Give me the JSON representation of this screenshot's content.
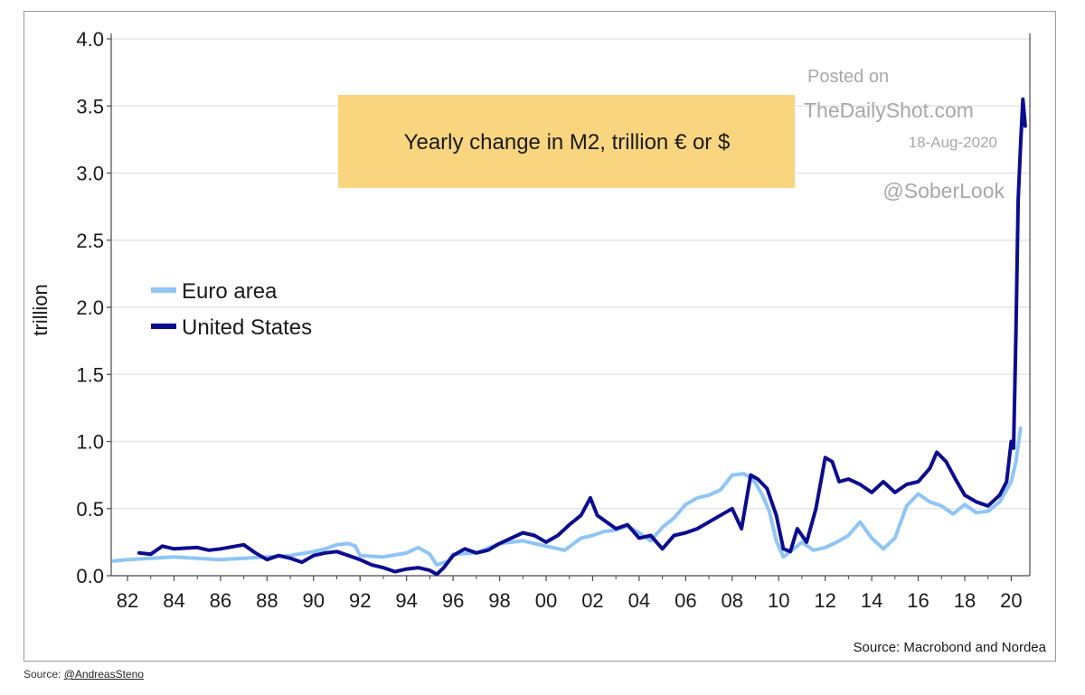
{
  "chart_data": {
    "type": "line",
    "title": "Yearly change in M2, trillion € or $",
    "ylabel": "trillion",
    "xlabel": "",
    "ylim": [
      0.0,
      4.0
    ],
    "xlim": [
      1981.3,
      2020.8
    ],
    "y_ticks": [
      "0.0",
      "0.5",
      "1.0",
      "1.5",
      "2.0",
      "2.5",
      "3.0",
      "3.5",
      "4.0"
    ],
    "x_ticks": [
      "82",
      "84",
      "86",
      "88",
      "90",
      "92",
      "94",
      "96",
      "98",
      "00",
      "02",
      "04",
      "06",
      "08",
      "10",
      "12",
      "14",
      "16",
      "18",
      "20"
    ],
    "grid": "horizontal",
    "legend_position": "left-middle",
    "source": "Source: Macrobond and Nordea",
    "series": [
      {
        "name": "Euro area",
        "color": "#8ec5f5",
        "x": [
          1981.4,
          1982.0,
          1983.0,
          1984.0,
          1985.0,
          1986.0,
          1987.0,
          1988.0,
          1989.0,
          1990.0,
          1990.5,
          1991.0,
          1991.5,
          1991.8,
          1992.0,
          1993.0,
          1994.0,
          1994.5,
          1995.0,
          1995.3,
          1995.8,
          1996.0,
          1997.0,
          1998.0,
          1999.0,
          2000.0,
          2000.8,
          2001.5,
          2002.0,
          2002.5,
          2003.0,
          2003.5,
          2004.0,
          2004.5,
          2005.0,
          2005.5,
          2006.0,
          2006.5,
          2007.0,
          2007.5,
          2008.0,
          2008.5,
          2008.8,
          2009.0,
          2009.3,
          2009.6,
          2009.9,
          2010.2,
          2010.5,
          2011.0,
          2011.5,
          2012.0,
          2012.5,
          2013.0,
          2013.5,
          2014.0,
          2014.5,
          2015.0,
          2015.5,
          2016.0,
          2016.5,
          2017.0,
          2017.5,
          2018.0,
          2018.5,
          2019.0,
          2019.5,
          2020.0,
          2020.2,
          2020.4
        ],
        "values": [
          0.11,
          0.12,
          0.13,
          0.14,
          0.13,
          0.12,
          0.13,
          0.14,
          0.15,
          0.18,
          0.2,
          0.23,
          0.24,
          0.22,
          0.15,
          0.14,
          0.17,
          0.21,
          0.16,
          0.08,
          0.11,
          0.16,
          0.17,
          0.24,
          0.26,
          0.22,
          0.19,
          0.28,
          0.3,
          0.33,
          0.34,
          0.37,
          0.32,
          0.26,
          0.36,
          0.43,
          0.53,
          0.58,
          0.6,
          0.64,
          0.75,
          0.76,
          0.73,
          0.69,
          0.6,
          0.48,
          0.26,
          0.14,
          0.18,
          0.25,
          0.19,
          0.21,
          0.25,
          0.3,
          0.4,
          0.28,
          0.2,
          0.28,
          0.52,
          0.61,
          0.55,
          0.52,
          0.46,
          0.53,
          0.47,
          0.48,
          0.55,
          0.7,
          0.85,
          1.1
        ]
      },
      {
        "name": "United States",
        "color": "#0c0c8f",
        "x": [
          1982.5,
          1983.0,
          1983.5,
          1984.0,
          1985.0,
          1985.5,
          1986.0,
          1987.0,
          1987.5,
          1988.0,
          1988.5,
          1989.0,
          1989.5,
          1990.0,
          1990.5,
          1991.0,
          1991.5,
          1992.0,
          1992.5,
          1993.0,
          1993.5,
          1994.0,
          1994.5,
          1995.0,
          1995.3,
          1995.6,
          1996.0,
          1996.5,
          1997.0,
          1997.5,
          1998.0,
          1998.5,
          1999.0,
          1999.5,
          2000.0,
          2000.5,
          2001.0,
          2001.5,
          2001.9,
          2002.2,
          2002.6,
          2003.0,
          2003.5,
          2004.0,
          2004.5,
          2005.0,
          2005.5,
          2006.0,
          2006.5,
          2007.0,
          2007.5,
          2008.0,
          2008.4,
          2008.8,
          2009.1,
          2009.5,
          2009.9,
          2010.2,
          2010.5,
          2010.8,
          2011.2,
          2011.6,
          2012.0,
          2012.3,
          2012.6,
          2013.0,
          2013.5,
          2014.0,
          2014.5,
          2015.0,
          2015.5,
          2016.0,
          2016.5,
          2016.8,
          2017.2,
          2017.6,
          2018.0,
          2018.5,
          2019.0,
          2019.5,
          2019.8,
          2020.0,
          2020.1,
          2020.2,
          2020.3,
          2020.4,
          2020.5,
          2020.6
        ],
        "values": [
          0.17,
          0.16,
          0.22,
          0.2,
          0.21,
          0.19,
          0.2,
          0.23,
          0.17,
          0.12,
          0.15,
          0.13,
          0.1,
          0.15,
          0.17,
          0.18,
          0.15,
          0.12,
          0.08,
          0.06,
          0.03,
          0.05,
          0.06,
          0.04,
          0.01,
          0.06,
          0.15,
          0.2,
          0.17,
          0.19,
          0.24,
          0.28,
          0.32,
          0.3,
          0.25,
          0.3,
          0.38,
          0.45,
          0.58,
          0.45,
          0.4,
          0.35,
          0.38,
          0.28,
          0.3,
          0.2,
          0.3,
          0.32,
          0.35,
          0.4,
          0.45,
          0.5,
          0.35,
          0.75,
          0.72,
          0.65,
          0.45,
          0.2,
          0.18,
          0.35,
          0.25,
          0.5,
          0.88,
          0.85,
          0.7,
          0.72,
          0.68,
          0.62,
          0.7,
          0.62,
          0.68,
          0.7,
          0.8,
          0.92,
          0.85,
          0.72,
          0.6,
          0.55,
          0.52,
          0.6,
          0.7,
          1.0,
          0.95,
          1.8,
          2.8,
          3.2,
          3.55,
          3.35
        ]
      }
    ]
  },
  "watermark": {
    "line1": "Posted on",
    "line2": "TheDailyShot.com",
    "line3": "18-Aug-2020",
    "line4": "@SoberLook"
  },
  "credit": {
    "prefix": "Source: ",
    "link": "@AndreasSteno"
  },
  "colors": {
    "title_box": "#f8d57e",
    "grid": "#e6e6e6",
    "axis": "#4a4a4a",
    "watermark": "#a8a8a8"
  }
}
